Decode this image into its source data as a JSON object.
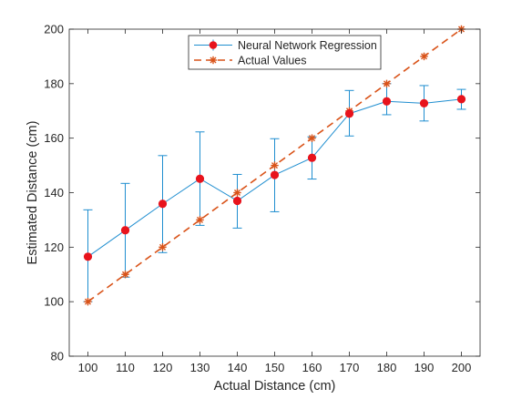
{
  "chart_data": {
    "type": "line",
    "xlabel": "Actual Distance (cm)",
    "ylabel": "Estimated Distance (cm)",
    "xlim": [
      95,
      205
    ],
    "ylim": [
      80,
      200
    ],
    "xticks": [
      100,
      110,
      120,
      130,
      140,
      150,
      160,
      170,
      180,
      190,
      200
    ],
    "yticks": [
      80,
      100,
      120,
      140,
      160,
      180,
      200
    ],
    "grid": false,
    "legend_position": "top-center",
    "series": [
      {
        "name": "Neural Network Regression",
        "color": "#1f8ed0",
        "marker_color": "#e8131c",
        "marker": "filled-circle",
        "line_style": "solid",
        "x": [
          100,
          110,
          120,
          130,
          140,
          150,
          160,
          170,
          180,
          190,
          200
        ],
        "y": [
          116.5,
          126.2,
          135.9,
          145.1,
          137.0,
          146.5,
          152.8,
          169.0,
          173.5,
          172.8,
          174.3
        ],
        "error_lower": [
          100.0,
          109.0,
          118.0,
          128.0,
          127.0,
          133.0,
          145.0,
          160.8,
          168.6,
          166.3,
          170.6
        ],
        "error_upper": [
          133.7,
          143.4,
          153.6,
          162.3,
          146.7,
          159.8,
          160.5,
          177.5,
          180.0,
          179.3,
          177.9
        ]
      },
      {
        "name": "Actual Values",
        "color": "#d95319",
        "marker": "asterisk",
        "line_style": "dashed",
        "x": [
          100,
          110,
          120,
          130,
          140,
          150,
          160,
          170,
          180,
          190,
          200
        ],
        "y": [
          100,
          110,
          120,
          130,
          140,
          150,
          160,
          170,
          180,
          190,
          200
        ]
      }
    ]
  }
}
